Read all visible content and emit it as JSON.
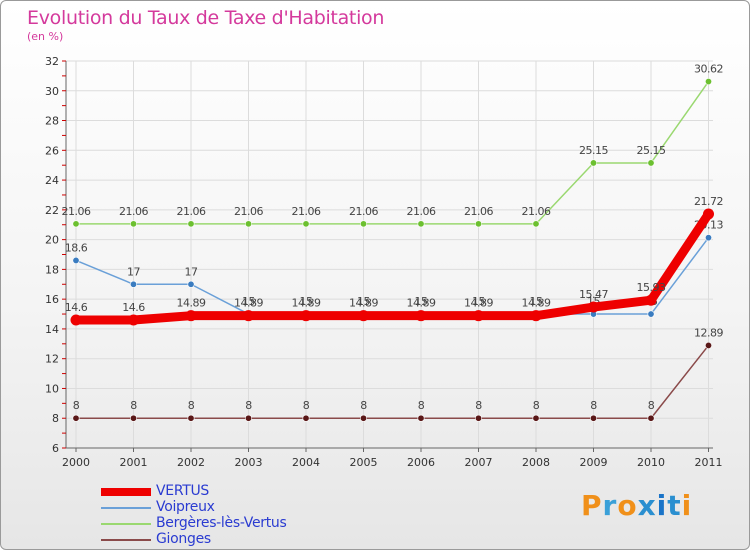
{
  "title": "Evolution du Taux de Taxe d'Habitation",
  "unit": "(en %)",
  "logo": {
    "text": "Proxiti",
    "letter_colors": [
      "#f0901a",
      "#3aa0d8",
      "#f0901a",
      "#2a8fd0",
      "#1a74c8",
      "#2a8fd0",
      "#f0901a"
    ]
  },
  "chart_data": {
    "type": "line",
    "x": [
      "2000",
      "2001",
      "2002",
      "2003",
      "2004",
      "2005",
      "2006",
      "2007",
      "2008",
      "2009",
      "2010",
      "2011"
    ],
    "ylim": [
      6,
      32
    ],
    "yticks": [
      "6",
      "8",
      "10",
      "12",
      "14",
      "16",
      "18",
      "20",
      "22",
      "24",
      "26",
      "28",
      "30",
      "32"
    ],
    "grid": true,
    "legend_position": "bottom-left",
    "series": [
      {
        "name": "Voipreux",
        "color": "#6aa0d8",
        "marker": "#3a7cc0",
        "values": [
          18.6,
          17,
          17,
          15,
          15,
          15,
          15,
          15,
          15,
          15,
          15,
          20.13
        ],
        "labels": [
          "18.6",
          "17",
          "17",
          "15",
          "15",
          "15",
          "15",
          "15",
          "15",
          "15",
          "15",
          "20.13"
        ]
      },
      {
        "name": "Bergères-lès-Vertus",
        "color": "#9ad870",
        "marker": "#6cc030",
        "values": [
          21.06,
          21.06,
          21.06,
          21.06,
          21.06,
          21.06,
          21.06,
          21.06,
          21.06,
          25.15,
          25.15,
          30.62
        ],
        "labels": [
          "21.06",
          "21.06",
          "21.06",
          "21.06",
          "21.06",
          "21.06",
          "21.06",
          "21.06",
          "21.06",
          "25.15",
          "25.15",
          "30.62"
        ]
      },
      {
        "name": "Gionges",
        "color": "#8a4a4a",
        "marker": "#5a1818",
        "values": [
          8,
          8,
          8,
          8,
          8,
          8,
          8,
          8,
          8,
          8,
          8,
          12.89
        ],
        "labels": [
          "8",
          "8",
          "8",
          "8",
          "8",
          "8",
          "8",
          "8",
          "8",
          "8",
          "8",
          "12.89"
        ]
      },
      {
        "name": "VERTUS",
        "color": "#ee0000",
        "marker": "#ee0000",
        "values": [
          14.6,
          14.6,
          14.89,
          14.89,
          14.89,
          14.89,
          14.89,
          14.89,
          14.89,
          15.47,
          15.93,
          21.72
        ],
        "labels": [
          "14.6",
          "14.6",
          "14.89",
          "14.89",
          "14.89",
          "14.89",
          "14.89",
          "14.89",
          "14.89",
          "15.47",
          "15.93",
          "21.72"
        ]
      }
    ],
    "legend": [
      "VERTUS",
      "Voipreux",
      "Bergères-lès-Vertus",
      "Gionges"
    ]
  }
}
